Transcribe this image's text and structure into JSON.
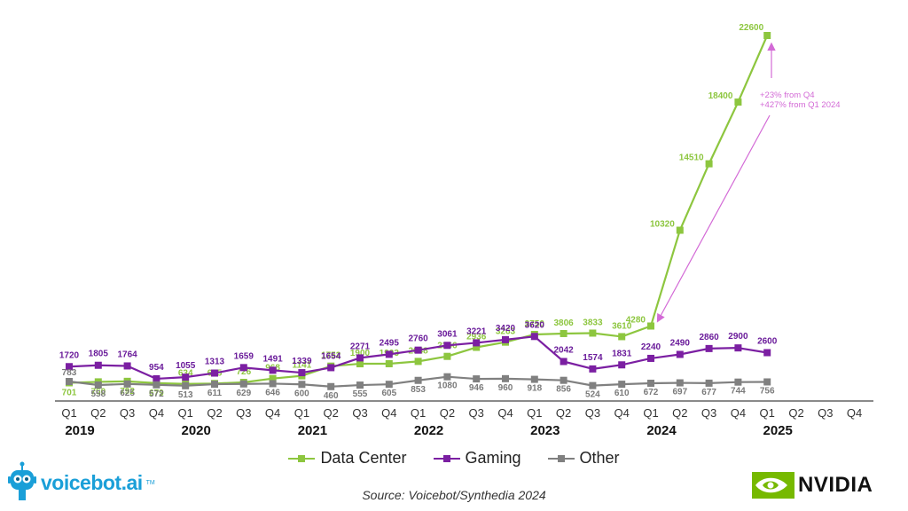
{
  "chart_data": {
    "type": "line",
    "categories": [
      "Q1",
      "Q2",
      "Q3",
      "Q4",
      "Q1",
      "Q2",
      "Q3",
      "Q4",
      "Q1",
      "Q2",
      "Q3",
      "Q4",
      "Q1",
      "Q2",
      "Q3",
      "Q4",
      "Q1",
      "Q2",
      "Q3",
      "Q4",
      "Q1",
      "Q2",
      "Q3",
      "Q4",
      "Q1",
      "Q2",
      "Q3",
      "Q4"
    ],
    "years": [
      "2019",
      "2020",
      "2021",
      "2022",
      "2023",
      "2024",
      "2025"
    ],
    "ylim": [
      0,
      23000
    ],
    "grid": false,
    "legend_position": "bottom",
    "series": [
      {
        "name": "Data Center",
        "color": "#8dc63f",
        "labelColor": "#8dc63f",
        "values": [
          701,
          760,
          792,
          679,
          634,
          655,
          726,
          968,
          1141,
          1752,
          1900,
          1903,
          2048,
          2366,
          2936,
          3263,
          3750,
          3806,
          3833,
          3610,
          4280,
          10320,
          14510,
          18400,
          22600,
          null,
          null,
          null
        ]
      },
      {
        "name": "Gaming",
        "color": "#7b1fa2",
        "labelColor": "#6a1b9a",
        "values": [
          1720,
          1805,
          1764,
          954,
          1055,
          1313,
          1659,
          1491,
          1339,
          1654,
          2271,
          2495,
          2760,
          3061,
          3221,
          3420,
          3620,
          2042,
          1574,
          1831,
          2240,
          2490,
          2860,
          2900,
          2600,
          null,
          null,
          null
        ]
      },
      {
        "name": "Other",
        "color": "#808080",
        "labelColor": "#7a7a7a",
        "values": [
          783,
          558,
          625,
          572,
          513,
          611,
          629,
          646,
          600,
          460,
          555,
          605,
          853,
          1080,
          946,
          960,
          918,
          856,
          524,
          610,
          672,
          697,
          677,
          744,
          756,
          null,
          null,
          null
        ]
      }
    ],
    "annotation": {
      "lines": [
        "+23% from Q4",
        "+427% from Q1 2024"
      ],
      "color": "#d36ad6"
    }
  },
  "legend": [
    {
      "label": "Data Center",
      "color": "#8dc63f"
    },
    {
      "label": "Gaming",
      "color": "#7b1fa2"
    },
    {
      "label": "Other",
      "color": "#808080"
    }
  ],
  "source": "Source: Voicebot/Synthedia 2024",
  "logos": {
    "voicebot": {
      "text": "voicebot.ai",
      "tm": "TM",
      "color": "#1a9fd8"
    },
    "nvidia": {
      "text": "NVIDIA",
      "color": "#76b900"
    }
  }
}
